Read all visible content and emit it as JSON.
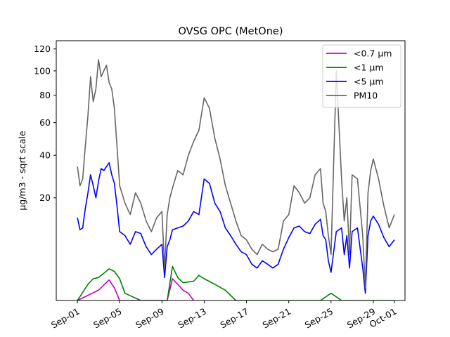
{
  "chart_data": {
    "type": "line",
    "title": "OVSG OPC (MetOne)",
    "xlabel": "",
    "ylabel": "µg/m3 - sqrt scale",
    "y_scale": "sqrt",
    "ylim": [
      0,
      128
    ],
    "xlim": [
      "2020-08-30",
      "2020-10-02"
    ],
    "yticks": [
      20,
      40,
      60,
      80,
      100,
      120
    ],
    "xticks": [
      {
        "date": "2020-09-01",
        "label": "Sep-01"
      },
      {
        "date": "2020-09-05",
        "label": "Sep-05"
      },
      {
        "date": "2020-09-09",
        "label": "Sep-09"
      },
      {
        "date": "2020-09-13",
        "label": "Sep-13"
      },
      {
        "date": "2020-09-17",
        "label": "Sep-17"
      },
      {
        "date": "2020-09-21",
        "label": "Sep-21"
      },
      {
        "date": "2020-09-25",
        "label": "Sep-25"
      },
      {
        "date": "2020-09-29",
        "label": "Sep-29"
      },
      {
        "date": "2020-10-01",
        "label": "Oct-01"
      }
    ],
    "legend_position": "top-right",
    "grid": false,
    "series": [
      {
        "name": "<0.7 µm",
        "color": "#bf00bf",
        "x": [
          "2020-09-01",
          "2020-09-03",
          "2020-09-04",
          "2020-09-04T12:00",
          "2020-09-05",
          "2020-09-09T12:00",
          "2020-09-10",
          "2020-09-10T12:00",
          "2020-09-11",
          "2020-09-11T12:00",
          "2020-09-12"
        ],
        "y": [
          0.0,
          0.2,
          0.8,
          0.3,
          0.0,
          0.0,
          0.9,
          0.5,
          0.2,
          0.1,
          0.0
        ]
      },
      {
        "name": "<1 µm",
        "color": "#008000",
        "x": [
          "2020-09-01",
          "2020-09-02",
          "2020-09-02T12:00",
          "2020-09-03",
          "2020-09-03T12:00",
          "2020-09-04",
          "2020-09-04T12:00",
          "2020-09-05",
          "2020-09-05T12:00",
          "2020-09-07",
          "2020-09-09T12:00",
          "2020-09-10",
          "2020-09-10T12:00",
          "2020-09-11",
          "2020-09-12",
          "2020-09-12T12:00",
          "2020-09-13",
          "2020-09-14",
          "2020-09-15",
          "2020-09-16",
          "2020-09-21",
          "2020-09-24",
          "2020-09-25",
          "2020-09-26",
          "2020-09-29",
          "2020-10-01"
        ],
        "y": [
          0.0,
          0.5,
          0.9,
          1.0,
          1.4,
          1.9,
          1.6,
          0.9,
          0.1,
          0.0,
          0.0,
          2.2,
          1.0,
          0.6,
          0.7,
          1.2,
          0.9,
          0.5,
          0.2,
          0.0,
          0.0,
          0.0,
          0.1,
          0.0,
          0.0,
          0.0
        ]
      },
      {
        "name": "<5 µm",
        "color": "#0000ff",
        "x": [
          "2020-09-01",
          "2020-09-01T06:00",
          "2020-09-01T12:00",
          "2020-09-01T18:00",
          "2020-09-02",
          "2020-09-02T06:00",
          "2020-09-02T12:00",
          "2020-09-02T18:00",
          "2020-09-03",
          "2020-09-03T06:00",
          "2020-09-03T12:00",
          "2020-09-03T18:00",
          "2020-09-04",
          "2020-09-04T06:00",
          "2020-09-04T12:00",
          "2020-09-04T18:00",
          "2020-09-05",
          "2020-09-05T12:00",
          "2020-09-06",
          "2020-09-06T12:00",
          "2020-09-07",
          "2020-09-07T12:00",
          "2020-09-08",
          "2020-09-08T12:00",
          "2020-09-09",
          "2020-09-09T06:00",
          "2020-09-09T12:00",
          "2020-09-09T18:00",
          "2020-09-10",
          "2020-09-10T12:00",
          "2020-09-11",
          "2020-09-11T12:00",
          "2020-09-12",
          "2020-09-12T12:00",
          "2020-09-13",
          "2020-09-13T12:00",
          "2020-09-14",
          "2020-09-14T12:00",
          "2020-09-15",
          "2020-09-15T12:00",
          "2020-09-16",
          "2020-09-16T12:00",
          "2020-09-17",
          "2020-09-17T12:00",
          "2020-09-18",
          "2020-09-18T12:00",
          "2020-09-19",
          "2020-09-19T12:00",
          "2020-09-20",
          "2020-09-20T12:00",
          "2020-09-21",
          "2020-09-21T12:00",
          "2020-09-22",
          "2020-09-22T12:00",
          "2020-09-23",
          "2020-09-23T12:00",
          "2020-09-24",
          "2020-09-24T06:00",
          "2020-09-24T12:00",
          "2020-09-24T18:00",
          "2020-09-25",
          "2020-09-25T12:00",
          "2020-09-26",
          "2020-09-26T06:00",
          "2020-09-26T12:00",
          "2020-09-26T18:00",
          "2020-09-27",
          "2020-09-27T12:00",
          "2020-09-28",
          "2020-09-28T06:00",
          "2020-09-28T12:00",
          "2020-09-28T18:00",
          "2020-09-29",
          "2020-09-29T12:00",
          "2020-09-30",
          "2020-09-30T12:00",
          "2020-10-01"
        ],
        "y": [
          13.0,
          9.5,
          10.0,
          16.0,
          22.0,
          30.0,
          25.0,
          20.0,
          27.0,
          33.0,
          32.0,
          34.0,
          36.0,
          30.0,
          26.0,
          17.0,
          9.0,
          8.0,
          6.0,
          9.0,
          8.5,
          5.5,
          4.0,
          5.0,
          6.0,
          1.0,
          5.5,
          7.0,
          9.5,
          10.0,
          10.5,
          12.0,
          15.0,
          14.0,
          28.0,
          26.0,
          18.0,
          15.0,
          10.0,
          8.0,
          6.0,
          4.5,
          4.0,
          2.5,
          2.0,
          3.0,
          2.5,
          2.0,
          2.5,
          5.0,
          7.5,
          10.0,
          10.5,
          9.0,
          8.5,
          11.0,
          12.5,
          8.0,
          7.0,
          3.0,
          1.5,
          9.0,
          10.0,
          4.0,
          8.0,
          2.0,
          9.0,
          10.0,
          2.0,
          0.1,
          8.0,
          12.0,
          13.5,
          11.0,
          7.5,
          5.5,
          7.0
        ]
      },
      {
        "name": "PM10",
        "color": "#666666",
        "x": [
          "2020-09-01",
          "2020-09-01T06:00",
          "2020-09-01T12:00",
          "2020-09-01T18:00",
          "2020-09-02",
          "2020-09-02T06:00",
          "2020-09-02T12:00",
          "2020-09-02T18:00",
          "2020-09-03",
          "2020-09-03T06:00",
          "2020-09-03T12:00",
          "2020-09-03T18:00",
          "2020-09-04",
          "2020-09-04T06:00",
          "2020-09-04T12:00",
          "2020-09-04T18:00",
          "2020-09-05",
          "2020-09-05T12:00",
          "2020-09-06",
          "2020-09-06T12:00",
          "2020-09-07",
          "2020-09-07T12:00",
          "2020-09-08",
          "2020-09-08T12:00",
          "2020-09-09",
          "2020-09-09T06:00",
          "2020-09-09T12:00",
          "2020-09-09T18:00",
          "2020-09-10",
          "2020-09-10T12:00",
          "2020-09-11",
          "2020-09-11T12:00",
          "2020-09-12",
          "2020-09-12T12:00",
          "2020-09-13",
          "2020-09-13T12:00",
          "2020-09-14",
          "2020-09-14T12:00",
          "2020-09-15",
          "2020-09-15T12:00",
          "2020-09-16",
          "2020-09-16T12:00",
          "2020-09-17",
          "2020-09-17T12:00",
          "2020-09-18",
          "2020-09-18T12:00",
          "2020-09-19",
          "2020-09-19T12:00",
          "2020-09-20",
          "2020-09-20T12:00",
          "2020-09-21",
          "2020-09-21T12:00",
          "2020-09-22",
          "2020-09-22T12:00",
          "2020-09-23",
          "2020-09-23T12:00",
          "2020-09-24",
          "2020-09-24T06:00",
          "2020-09-24T12:00",
          "2020-09-24T18:00",
          "2020-09-25",
          "2020-09-25T12:00",
          "2020-09-26",
          "2020-09-26T06:00",
          "2020-09-26T12:00",
          "2020-09-26T18:00",
          "2020-09-27",
          "2020-09-27T12:00",
          "2020-09-28",
          "2020-09-28T06:00",
          "2020-09-28T12:00",
          "2020-09-28T18:00",
          "2020-09-29",
          "2020-09-29T12:00",
          "2020-09-30",
          "2020-09-30T12:00",
          "2020-10-01"
        ],
        "y": [
          34.0,
          25.0,
          28.0,
          45.0,
          65.0,
          95.0,
          75.0,
          85.0,
          110.0,
          95.0,
          100.0,
          105.0,
          90.0,
          85.0,
          70.0,
          45.0,
          25.0,
          18.0,
          14.0,
          22.0,
          18.0,
          12.0,
          9.0,
          13.0,
          15.0,
          2.0,
          14.0,
          20.0,
          24.0,
          32.0,
          30.0,
          40.0,
          48.0,
          55.0,
          78.0,
          70.0,
          50.0,
          38.0,
          25.0,
          18.0,
          12.0,
          8.0,
          7.0,
          5.0,
          4.0,
          6.0,
          5.0,
          4.5,
          5.0,
          12.0,
          14.0,
          25.0,
          22.0,
          18.0,
          20.0,
          30.0,
          33.0,
          18.0,
          15.0,
          8.0,
          4.0,
          100.0,
          28.0,
          12.0,
          20.0,
          4.0,
          30.0,
          28.0,
          8.0,
          0.3,
          22.0,
          32.0,
          38.0,
          28.0,
          17.0,
          10.0,
          14.0
        ]
      }
    ]
  }
}
